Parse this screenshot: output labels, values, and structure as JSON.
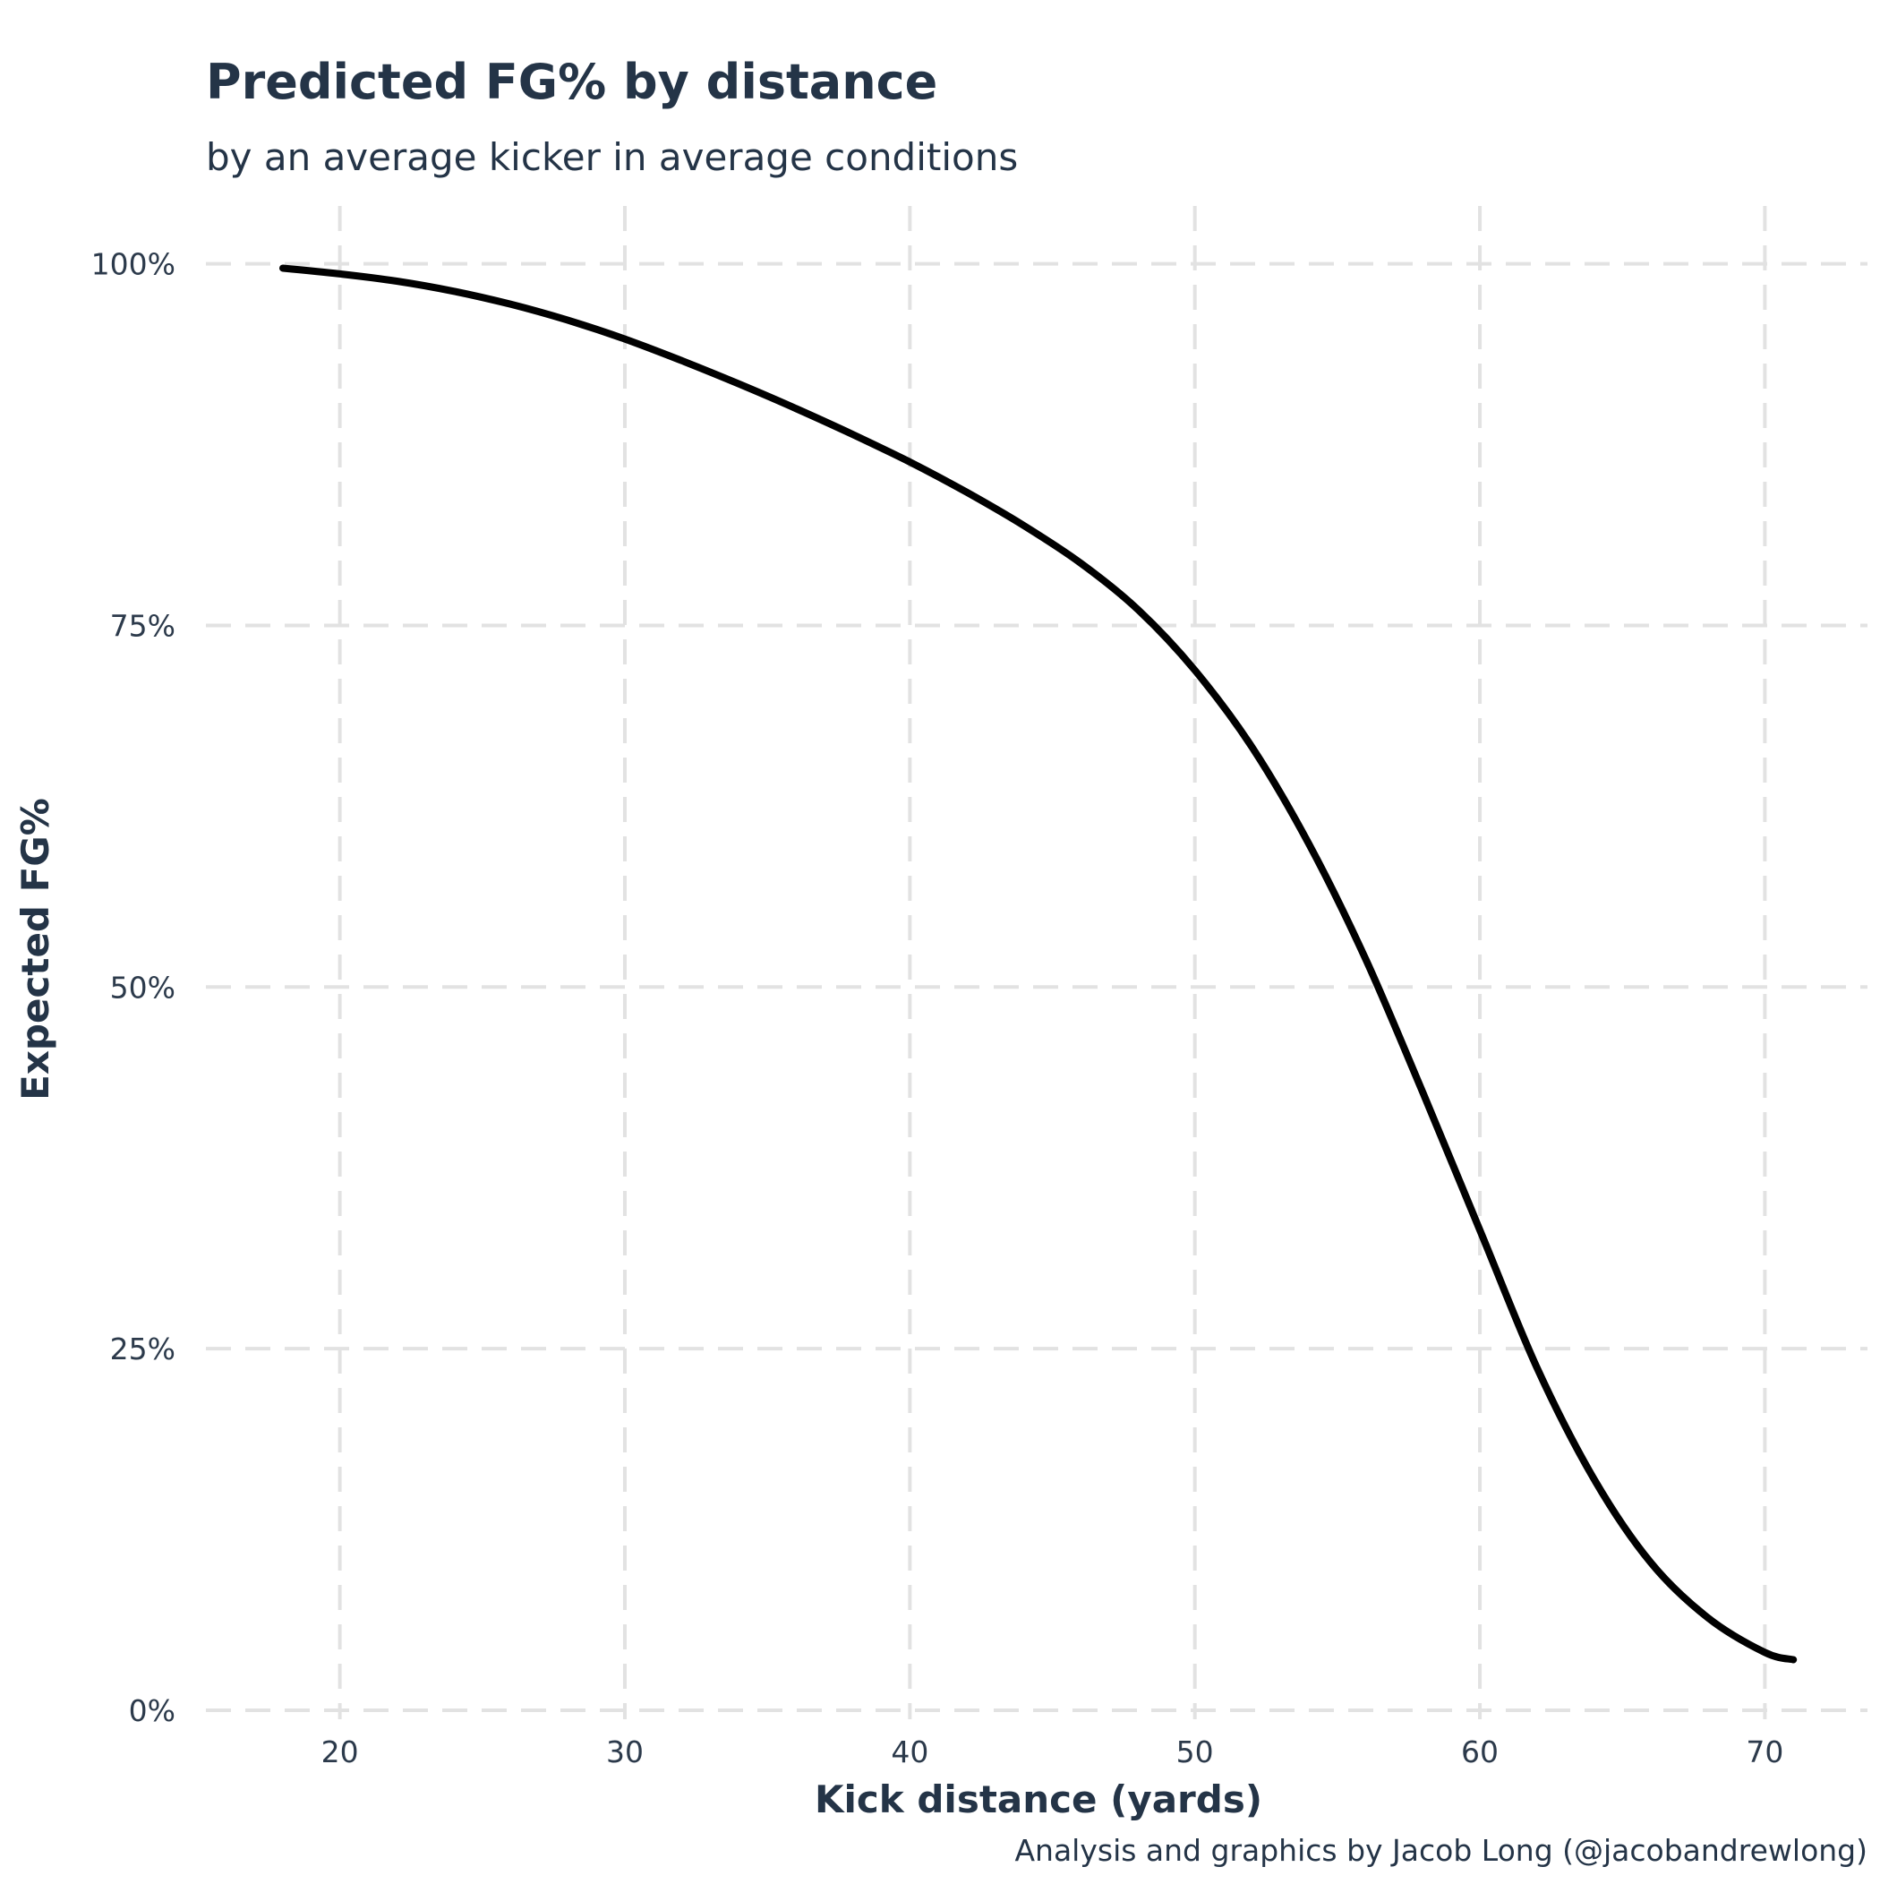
{
  "chart_data": {
    "type": "line",
    "title": "Predicted FG% by distance",
    "subtitle": "by an average kicker in average conditions",
    "xlabel": "Kick distance (yards)",
    "ylabel": "Expected FG%",
    "caption": "Analysis and graphics by Jacob Long (@jacobandrewlong)",
    "xlim": [
      15.3,
      73.6
    ],
    "ylim": [
      0,
      1.04
    ],
    "x_ticks": [
      20,
      30,
      40,
      50,
      60,
      70
    ],
    "x_tick_labels": [
      "20",
      "30",
      "40",
      "50",
      "60",
      "70"
    ],
    "y_ticks": [
      0,
      0.25,
      0.5,
      0.75,
      1
    ],
    "y_tick_labels": [
      "0%",
      "25%",
      "50%",
      "75%",
      "100%"
    ],
    "grid": true,
    "grid_style": "dashed",
    "legend": false,
    "series": [
      {
        "color": "#000000",
        "x": [
          18,
          20,
          22,
          24,
          26,
          28,
          30,
          32,
          34,
          36,
          38,
          40,
          42,
          44,
          46,
          48,
          50,
          52,
          54,
          56,
          58,
          60,
          62,
          64,
          66,
          68,
          70,
          71
        ],
        "y": [
          0.997,
          0.993,
          0.988,
          0.981,
          0.972,
          0.961,
          0.948,
          0.933,
          0.917,
          0.9,
          0.882,
          0.863,
          0.842,
          0.819,
          0.793,
          0.761,
          0.719,
          0.666,
          0.599,
          0.519,
          0.427,
          0.332,
          0.237,
          0.16,
          0.102,
          0.064,
          0.04,
          0.035
        ]
      }
    ]
  }
}
